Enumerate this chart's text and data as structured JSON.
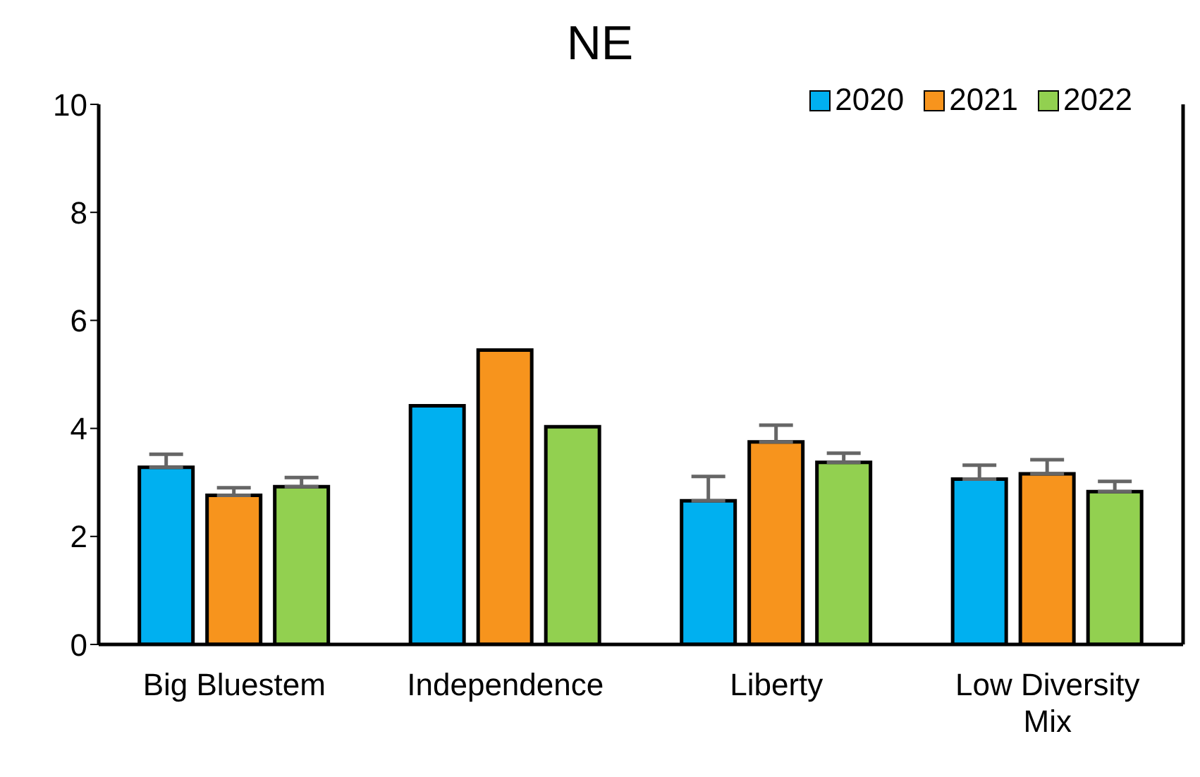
{
  "chart_data": {
    "type": "bar",
    "title": "NE",
    "categories": [
      "Big Bluestem",
      "Independence",
      "Liberty",
      "Low Diversity Mix"
    ],
    "series": [
      {
        "name": "2020",
        "color": "#00b0f0",
        "values": [
          3.28,
          4.42,
          2.66,
          3.06
        ],
        "errors": [
          [
            3.28,
            3.52
          ],
          null,
          [
            2.66,
            3.11
          ],
          [
            3.06,
            3.32
          ]
        ]
      },
      {
        "name": "2021",
        "color": "#f7941d",
        "values": [
          2.76,
          5.45,
          3.75,
          3.16
        ],
        "errors": [
          [
            2.76,
            2.9
          ],
          null,
          [
            3.75,
            4.06
          ],
          [
            3.16,
            3.42
          ]
        ]
      },
      {
        "name": "2022",
        "color": "#92d050",
        "values": [
          2.92,
          4.03,
          3.37,
          2.83
        ],
        "errors": [
          [
            2.92,
            3.09
          ],
          null,
          [
            3.37,
            3.54
          ],
          [
            2.83,
            3.02
          ]
        ]
      }
    ],
    "ylim": [
      0,
      10
    ],
    "yticks": [
      0,
      2,
      4,
      6,
      8,
      10
    ],
    "grid": false,
    "legend": "top right"
  }
}
